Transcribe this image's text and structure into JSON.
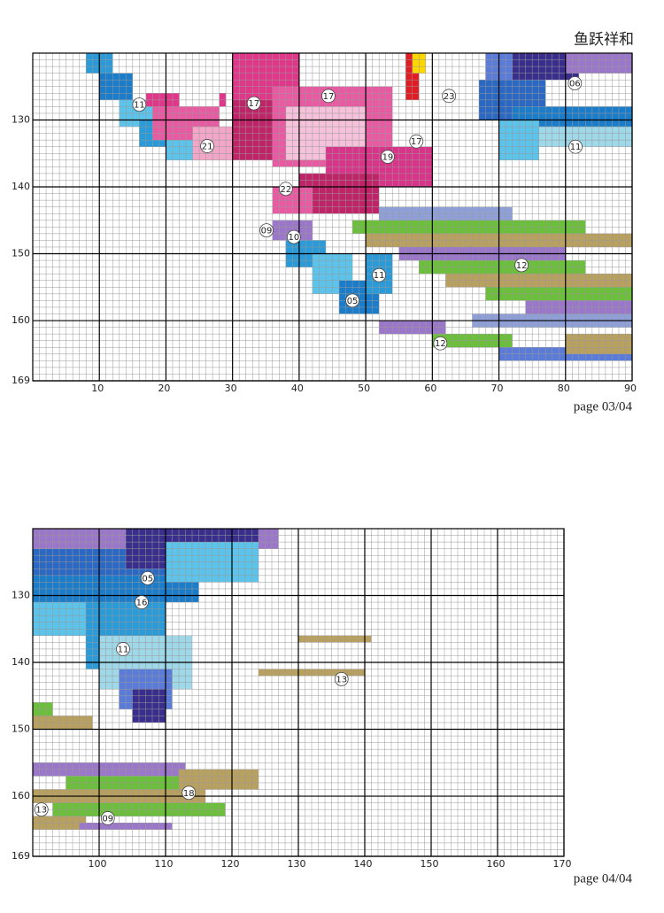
{
  "title": "鱼跃祥和",
  "panels": [
    {
      "page": "page 03/04",
      "col_range": [
        0,
        90
      ],
      "row_range": [
        120,
        169
      ],
      "col_labels": [
        10,
        20,
        30,
        40,
        50,
        60,
        70,
        80,
        90
      ],
      "row_labels": [
        130,
        140,
        150,
        160,
        169
      ],
      "symbols": [
        "11",
        "17",
        "17",
        "21",
        "22",
        "23",
        "19",
        "17",
        "09",
        "10",
        "06",
        "11",
        "11",
        "05",
        "12",
        "12"
      ]
    },
    {
      "page": "page 04/04",
      "col_range": [
        90,
        170
      ],
      "row_range": [
        120,
        169
      ],
      "col_labels": [
        100,
        110,
        120,
        130,
        140,
        150,
        160,
        170
      ],
      "row_labels": [
        130,
        140,
        150,
        160,
        169
      ],
      "symbols": [
        "05",
        "16",
        "11",
        "13",
        "18",
        "13",
        "09"
      ]
    }
  ]
}
